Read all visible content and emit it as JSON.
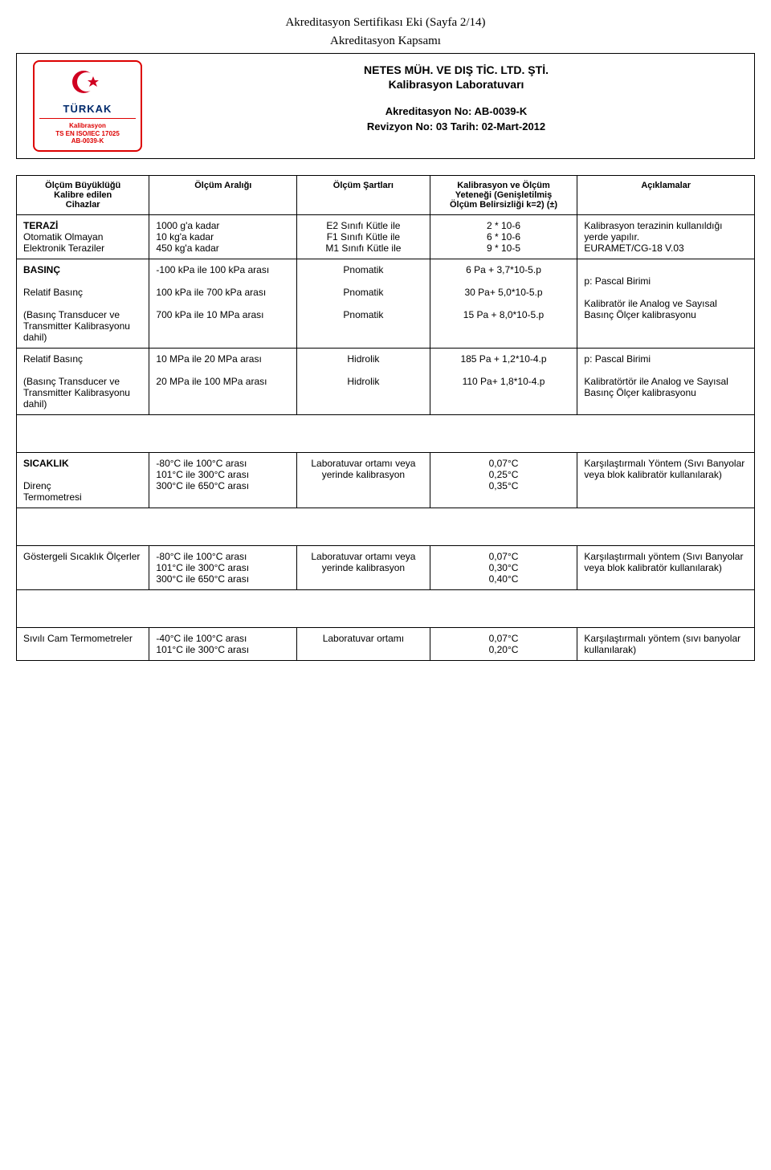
{
  "page_header_1": "Akreditasyon Sertifikası Eki (Sayfa 2/14)",
  "page_header_2": "Akreditasyon Kapsamı",
  "logo": {
    "brand": "TÜRKAK",
    "line1": "Kalibrasyon",
    "line2": "TS EN ISO/IEC 17025",
    "line3": "AB-0039-K",
    "crescent_color": "#d00020"
  },
  "title": {
    "main": "NETES MÜH. VE DIŞ TİC. LTD. ŞTİ.",
    "sub": "Kalibrasyon Laboratuvarı",
    "akno_label": "Akreditasyon No: AB-0039-K",
    "rev_label": "Revizyon No: 03 Tarih: 02-Mart-2012"
  },
  "columns": [
    "Ölçüm Büyüklüğü\nKalibre edilen\nCihazlar",
    "Ölçüm Aralığı",
    "Ölçüm Şartları",
    "Kalibrasyon ve Ölçüm\nYeteneği (Genişletilmiş\nÖlçüm Belirsizliği k=2) (±)",
    "Açıklamalar"
  ],
  "rows": [
    {
      "c1": "TERAZİ\n  Otomatik Olmayan\n  Elektronik Teraziler",
      "c1_bold_first": true,
      "c2": "1000 g'a kadar\n10 kg'a kadar\n450 kg'a kadar",
      "c3": "E2 Sınıfı Kütle ile\nF1 Sınıfı Kütle ile\nM1 Sınıfı Kütle ile",
      "c4": "2 * 10-6\n6 * 10-6\n9 * 10-5",
      "c5": "Kalibrasyon terazinin kullanıldığı yerde yapılır.\nEURAMET/CG-18 V.03"
    },
    {
      "c1": "BASINÇ\n\n   Relatif Basınç\n\n(Basınç Transducer ve Transmitter Kalibrasyonu dahil)",
      "c1_bold_first": true,
      "c2": "-100 kPa ile 100 kPa arası\n\n100 kPa ile 700 kPa arası\n\n700 kPa ile 10 MPa arası",
      "c3": "Pnomatik\n\nPnomatik\n\nPnomatik",
      "c4": "6 Pa + 3,7*10-5.p\n\n30 Pa+ 5,0*10-5.p\n\n15 Pa + 8,0*10-5.p",
      "c5": "\np: Pascal Birimi\n\nKalibratör ile Analog ve Sayısal Basınç Ölçer kalibrasyonu"
    },
    {
      "c1": "   Relatif Basınç\n\n(Basınç Transducer ve Transmitter Kalibrasyonu dahil)",
      "c2": "10 MPa ile 20 MPa arası\n\n20 MPa ile 100 MPa arası",
      "c3": "Hidrolik\n\nHidrolik",
      "c4": "185 Pa + 1,2*10-4.p\n\n110 Pa+ 1,8*10-4.p",
      "c5": "p: Pascal Birimi\n\nKalibratörtör ile Analog ve Sayısal Basınç Ölçer kalibrasyonu"
    }
  ],
  "rows2": [
    {
      "c1": "SICAKLIK\n\n   Direnç\n   Termometresi",
      "c1_bold_first": true,
      "c2": "-80°C ile 100°C arası\n101°C ile 300°C arası\n300°C ile 650°C arası",
      "c3": "Laboratuvar ortamı veya yerinde kalibrasyon",
      "c4": "0,07°C\n0,25°C\n0,35°C",
      "c5": "Karşılaştırmalı Yöntem (Sıvı Banyolar veya blok kalibratör kullanılarak)"
    }
  ],
  "rows3": [
    {
      "c1": "Göstergeli Sıcaklık Ölçerler",
      "c2": "-80°C ile 100°C arası\n101°C ile 300°C arası\n300°C ile 650°C arası",
      "c3": "Laboratuvar ortamı veya yerinde kalibrasyon",
      "c4": "0,07°C\n0,30°C\n0,40°C",
      "c5": "Karşılaştırmalı yöntem (Sıvı Banyolar veya blok kalibratör kullanılarak)"
    }
  ],
  "rows4": [
    {
      "c1": "Sıvılı Cam Termometreler",
      "c2": "-40°C ile 100°C arası\n101°C ile 300°C arası",
      "c3": "Laboratuvar ortamı",
      "c4": "0,07°C\n0,20°C",
      "c5": "Karşılaştırmalı yöntem (sıvı banyolar kullanılarak)"
    }
  ]
}
